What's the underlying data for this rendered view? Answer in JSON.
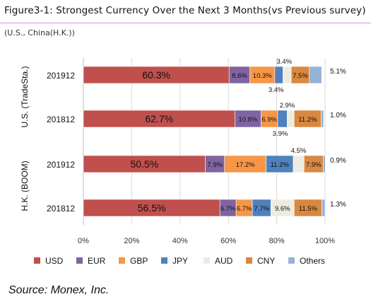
{
  "title": "Figure3-1: Strongest Currency Over the Next 3 Months(vs Previous survey)",
  "subtitle": "(U.S., China(H.K.))",
  "source": "Source: Monex, Inc.",
  "colors": {
    "USD": "#c0504d",
    "EUR": "#8064a2",
    "GBP": "#f79646",
    "JPY": "#4f81bd",
    "AUD": "#eeece1",
    "CNY": "#d9883f",
    "Others": "#95b3d7"
  },
  "chart_data": {
    "type": "bar",
    "orientation": "horizontal",
    "stacked": true,
    "categories": [
      "201912",
      "201812",
      "201912",
      "201812"
    ],
    "groups": [
      {
        "label": "U.S. (TradeSta.)",
        "rows": [
          0,
          1
        ]
      },
      {
        "label": "H.K. (BOOM)",
        "rows": [
          2,
          3
        ]
      }
    ],
    "series": [
      {
        "name": "USD",
        "values": [
          60.3,
          62.7,
          50.5,
          56.5
        ],
        "labels": [
          "60.3%",
          "62.7%",
          "50.5%",
          "56.5%"
        ]
      },
      {
        "name": "EUR",
        "values": [
          8.6,
          10.8,
          7.9,
          6.7
        ],
        "labels": [
          "8.6%",
          "10.8%",
          "7.9%",
          "6.7%"
        ]
      },
      {
        "name": "GBP",
        "values": [
          10.3,
          6.9,
          17.2,
          6.7
        ],
        "labels": [
          "10.3%",
          "6.9%",
          "17.2%",
          "6.7%"
        ]
      },
      {
        "name": "JPY",
        "values": [
          3.4,
          3.9,
          11.2,
          7.7
        ],
        "labels": [
          "3.4%",
          "3.9%",
          "11.2%",
          "7.7%"
        ]
      },
      {
        "name": "AUD",
        "values": [
          3.4,
          2.9,
          4.5,
          9.6
        ],
        "labels": [
          "3.4%",
          "2.9%",
          "4.5%",
          "9.6%"
        ]
      },
      {
        "name": "CNY",
        "values": [
          7.5,
          11.2,
          7.9,
          11.5
        ],
        "labels": [
          "7.5%",
          "11.2%",
          "7.9%",
          "11.5%"
        ]
      },
      {
        "name": "Others",
        "values": [
          5.1,
          1.0,
          0.9,
          1.3
        ],
        "labels": [
          "5.1%",
          "1.0%",
          "0.9%",
          "1.3%"
        ]
      }
    ],
    "xlim": [
      0,
      100
    ],
    "xticks": [
      "0%",
      "20%",
      "40%",
      "60%",
      "80%",
      "100%"
    ],
    "legend": [
      "USD",
      "EUR",
      "GBP",
      "JPY",
      "AUD",
      "CNY",
      "Others"
    ],
    "legend_position": "bottom",
    "grid": "vertical"
  }
}
